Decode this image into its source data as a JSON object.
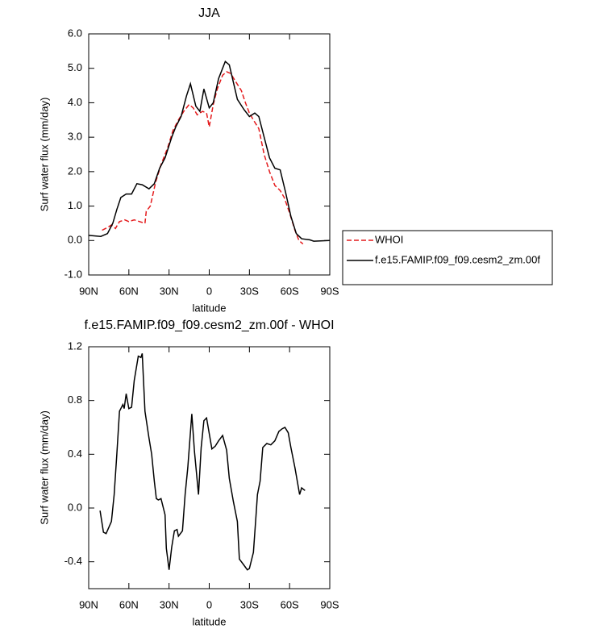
{
  "chart_data": [
    {
      "type": "line",
      "title": "JJA",
      "xlabel": "latitude",
      "ylabel": "Surf water flux (mm/day)",
      "xlim": [
        90,
        -90
      ],
      "xticks": [
        {
          "value": 90,
          "label": "90N"
        },
        {
          "value": 60,
          "label": "60N"
        },
        {
          "value": 30,
          "label": "30N"
        },
        0,
        {
          "value": -30,
          "label": "30S"
        },
        {
          "value": -60,
          "label": "60S"
        },
        {
          "value": -90,
          "label": "90S"
        }
      ],
      "ylim": [
        -1,
        6
      ],
      "yticks": [
        {
          "value": 6,
          "label": "6.0"
        },
        {
          "value": 5,
          "label": "5.0"
        },
        {
          "value": 4,
          "label": "4.0"
        },
        {
          "value": 3,
          "label": "3.0"
        },
        {
          "value": 2,
          "label": "2.0"
        },
        {
          "value": 1,
          "label": "1.0"
        },
        {
          "value": 0,
          "label": "0.0"
        },
        {
          "value": -1,
          "label": "-1.0"
        }
      ],
      "legend": "right",
      "series": [
        {
          "name": "WHOI",
          "color": "#e41a1c",
          "dash": true,
          "x": [
            80,
            76,
            73,
            70,
            67,
            63,
            60,
            56,
            52,
            48,
            47,
            44,
            40,
            36,
            31,
            27,
            23,
            19,
            15,
            12,
            9,
            5,
            2,
            0,
            -3,
            -6,
            -10,
            -13,
            -16,
            -20,
            -24,
            -27,
            -30,
            -33,
            -37,
            -41,
            -45,
            -49,
            -53,
            -56,
            -60,
            -64,
            -67,
            -70
          ],
          "values": [
            0.3,
            0.38,
            0.45,
            0.35,
            0.55,
            0.6,
            0.55,
            0.6,
            0.55,
            0.5,
            0.85,
            1.0,
            1.7,
            2.2,
            2.7,
            3.2,
            3.5,
            3.75,
            3.95,
            3.85,
            3.65,
            3.75,
            3.7,
            3.3,
            3.95,
            4.4,
            4.8,
            4.9,
            4.85,
            4.6,
            4.35,
            4.0,
            3.7,
            3.5,
            3.25,
            2.5,
            2.0,
            1.6,
            1.45,
            1.25,
            0.8,
            0.3,
            0.0,
            -0.1
          ]
        },
        {
          "name": "f.e15.FAMIP.f09_f09.cesm2_zm.00f",
          "color": "#000000",
          "dash": false,
          "x": [
            90,
            81,
            76,
            72,
            69,
            66,
            62,
            58,
            54,
            50,
            45,
            41,
            37,
            33,
            28,
            25,
            21,
            17,
            14,
            10,
            7,
            4,
            0,
            -3,
            -7,
            -10,
            -12,
            -15,
            -18,
            -21,
            -26,
            -30,
            -34,
            -37,
            -41,
            -45,
            -49,
            -53,
            -57,
            -61,
            -65,
            -69,
            -75,
            -78,
            -90
          ],
          "values": [
            0.15,
            0.12,
            0.2,
            0.5,
            0.9,
            1.25,
            1.35,
            1.35,
            1.65,
            1.62,
            1.5,
            1.65,
            2.1,
            2.4,
            3.0,
            3.3,
            3.6,
            4.2,
            4.55,
            3.9,
            3.75,
            4.4,
            3.85,
            4.0,
            4.7,
            5.0,
            5.2,
            5.1,
            4.6,
            4.1,
            3.8,
            3.6,
            3.7,
            3.6,
            3.0,
            2.4,
            2.1,
            2.05,
            1.4,
            0.7,
            0.2,
            0.05,
            0.02,
            -0.02,
            0.0
          ]
        }
      ]
    },
    {
      "type": "line",
      "title": "f.e15.FAMIP.f09_f09.cesm2_zm.00f - WHOI",
      "xlabel": "latitude",
      "ylabel": "Surf water flux (mm/day)",
      "xlim": [
        90,
        -90
      ],
      "xticks": [
        {
          "value": 90,
          "label": "90N"
        },
        {
          "value": 60,
          "label": "60N"
        },
        {
          "value": 30,
          "label": "30N"
        },
        0,
        {
          "value": -30,
          "label": "30S"
        },
        {
          "value": -60,
          "label": "60S"
        },
        {
          "value": -90,
          "label": "90S"
        }
      ],
      "ylim": [
        -0.6,
        1.2
      ],
      "yticks": [
        1.2,
        0.8,
        0.4,
        {
          "value": 0,
          "label": "0.0"
        },
        -0.4
      ],
      "series": [
        {
          "color": "#000000",
          "dash": false,
          "x": [
            81.5,
            79,
            77,
            73,
            71,
            69,
            67,
            64.5,
            63.5,
            62,
            60,
            58,
            56,
            53,
            51,
            50,
            48,
            45,
            43,
            41,
            39.5,
            38,
            36,
            33,
            32,
            30,
            28,
            26,
            24,
            23,
            20,
            18,
            16,
            13,
            11,
            8,
            6,
            4,
            2,
            -2,
            -4.5,
            -7,
            -10,
            -13,
            -15,
            -18,
            -21,
            -22.5,
            -25.5,
            -28.5,
            -30,
            -33,
            -35,
            -36,
            -38,
            -40,
            -43,
            -46,
            -49,
            -52,
            -54.5,
            -56.5,
            -59,
            -61,
            -64,
            -67.5,
            -69,
            -71.5
          ],
          "values": [
            -0.02,
            -0.18,
            -0.19,
            -0.1,
            0.1,
            0.4,
            0.72,
            0.77,
            0.74,
            0.85,
            0.74,
            0.75,
            0.95,
            1.13,
            1.12,
            1.15,
            0.72,
            0.52,
            0.4,
            0.2,
            0.07,
            0.06,
            0.07,
            -0.05,
            -0.3,
            -0.46,
            -0.29,
            -0.17,
            -0.16,
            -0.21,
            -0.17,
            0.1,
            0.3,
            0.7,
            0.42,
            0.1,
            0.45,
            0.65,
            0.67,
            0.44,
            0.46,
            0.5,
            0.54,
            0.43,
            0.22,
            0.05,
            -0.1,
            -0.38,
            -0.42,
            -0.46,
            -0.45,
            -0.33,
            -0.05,
            0.1,
            0.2,
            0.45,
            0.48,
            0.47,
            0.5,
            0.57,
            0.59,
            0.6,
            0.56,
            0.45,
            0.3,
            0.1,
            0.15,
            0.13
          ]
        }
      ]
    }
  ]
}
